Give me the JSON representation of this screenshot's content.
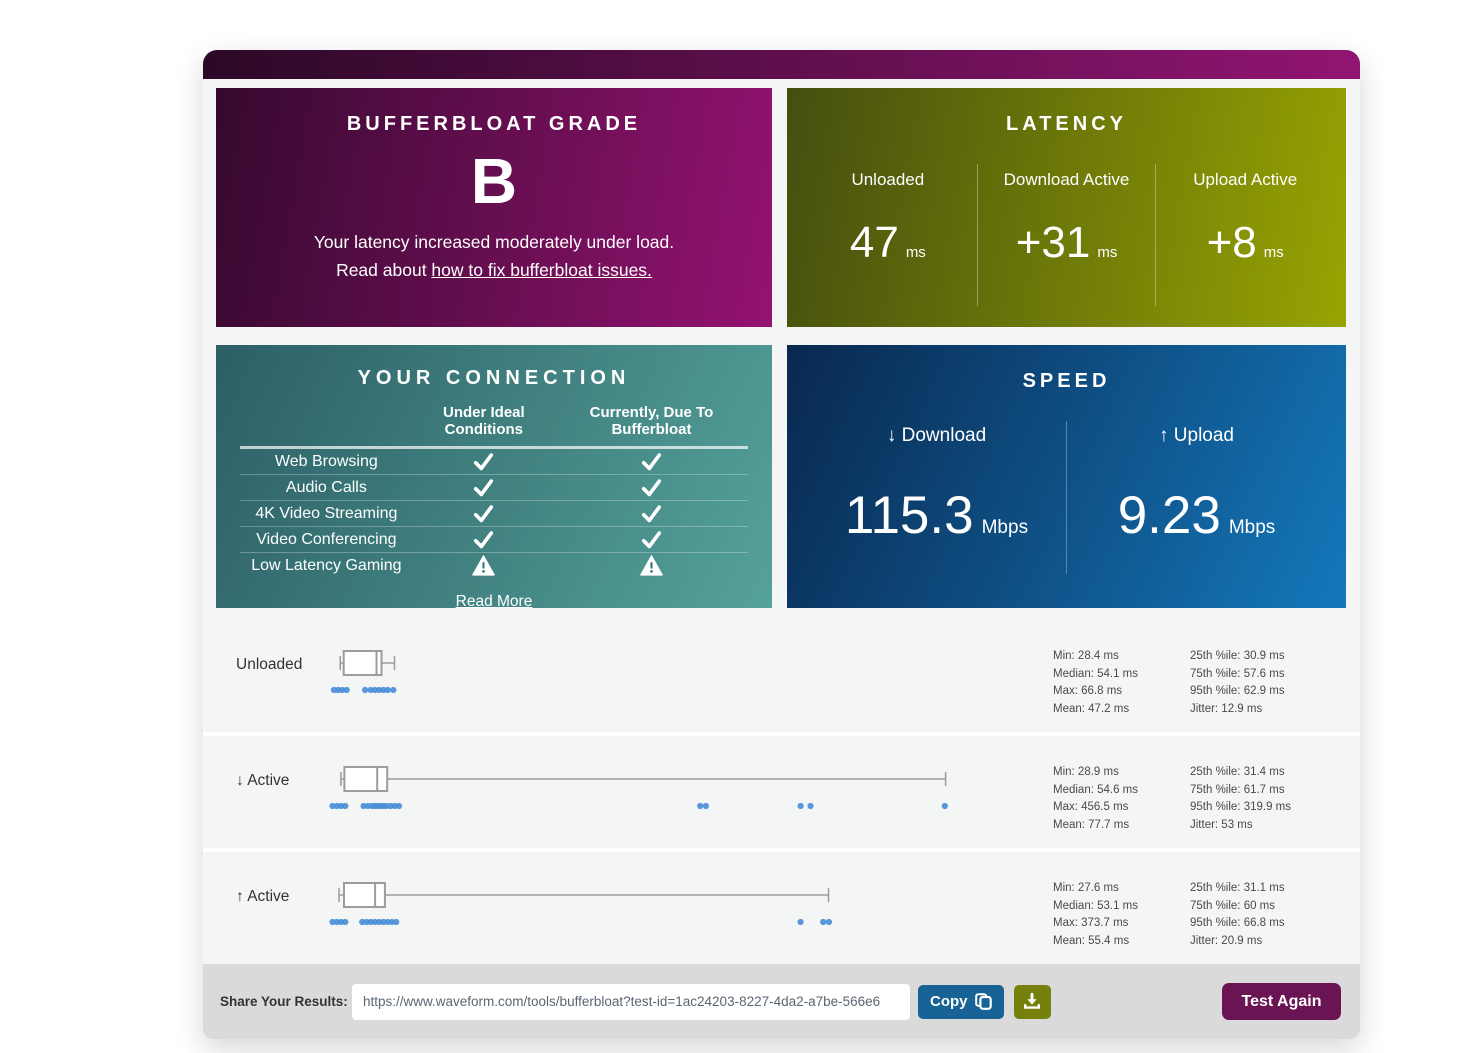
{
  "grade_card": {
    "title": "BUFFERBLOAT GRADE",
    "grade": "B",
    "description": "Your latency increased moderately under load.",
    "read_about_prefix": "Read about ",
    "link_text": "how to fix bufferbloat issues."
  },
  "latency_card": {
    "title": "LATENCY",
    "columns": [
      {
        "label": "Unloaded",
        "value": "47",
        "unit": "ms"
      },
      {
        "label": "Download Active",
        "value": "+31",
        "unit": "ms"
      },
      {
        "label": "Upload Active",
        "value": "+8",
        "unit": "ms"
      }
    ]
  },
  "connection_card": {
    "title": "YOUR CONNECTION",
    "col_headers": [
      "Under Ideal Conditions",
      "Currently, Due To Bufferbloat"
    ],
    "rows": [
      {
        "label": "Web Browsing",
        "ideal": "check",
        "current": "check"
      },
      {
        "label": "Audio Calls",
        "ideal": "check",
        "current": "check"
      },
      {
        "label": "4K Video Streaming",
        "ideal": "check",
        "current": "check"
      },
      {
        "label": "Video Conferencing",
        "ideal": "check",
        "current": "check"
      },
      {
        "label": "Low Latency Gaming",
        "ideal": "warn",
        "current": "warn"
      }
    ],
    "read_more": "Read More"
  },
  "speed_card": {
    "title": "SPEED",
    "columns": [
      {
        "arrow": "↓",
        "label": "Download",
        "value": "115.3",
        "unit": "Mbps"
      },
      {
        "arrow": "↑",
        "label": "Upload",
        "value": "9.23",
        "unit": "Mbps"
      }
    ]
  },
  "chart_data": {
    "type": "boxplot",
    "unit": "ms",
    "x_axis": {
      "min_ms": 0,
      "max_ms": 495,
      "shared_scale": true,
      "gridlines": false
    },
    "rows": [
      {
        "label": "Unloaded",
        "min": 28.4,
        "q1": 30.9,
        "median": 54.1,
        "q3": 57.6,
        "max": 66.8,
        "mean": 47.2,
        "p25": 30.9,
        "p75": 57.6,
        "p95": 62.9,
        "jitter": 12.9,
        "points_ms": [
          24,
          27,
          30,
          33,
          46,
          50,
          53,
          56,
          59,
          62,
          66
        ],
        "stats_left": [
          "Min: 28.4 ms",
          "Median: 54.1 ms",
          "Max: 66.8 ms",
          "Mean: 47.2 ms"
        ],
        "stats_right": [
          "25th %ile: 30.9 ms",
          "75th %ile: 57.6 ms",
          "95th %ile: 62.9 ms",
          "Jitter: 12.9 ms"
        ]
      },
      {
        "label": "↓ Active",
        "min": 28.9,
        "q1": 31.4,
        "median": 54.6,
        "q3": 61.7,
        "max": 456.5,
        "mean": 77.7,
        "p25": 31.4,
        "p75": 61.7,
        "p95": 319.9,
        "jitter": 53,
        "points_ms": [
          23,
          26,
          29,
          32,
          45,
          48,
          51,
          53,
          55,
          57,
          59,
          61,
          64,
          67,
          70,
          283,
          287,
          354,
          361,
          456
        ],
        "stats_left": [
          "Min: 28.9 ms",
          "Median: 54.6 ms",
          "Max: 456.5 ms",
          "Mean: 77.7 ms"
        ],
        "stats_right": [
          "25th %ile: 31.4 ms",
          "75th %ile: 61.7 ms",
          "95th %ile: 319.9 ms",
          "Jitter: 53 ms"
        ]
      },
      {
        "label": "↑ Active",
        "min": 27.6,
        "q1": 31.1,
        "median": 53.1,
        "q3": 60,
        "max": 373.7,
        "mean": 55.4,
        "p25": 31.1,
        "p75": 60,
        "p95": 66.8,
        "jitter": 20.9,
        "points_ms": [
          23,
          26,
          29,
          32,
          44,
          47,
          50,
          53,
          56,
          59,
          62,
          65,
          68,
          354,
          370,
          374
        ],
        "stats_left": [
          "Min: 27.6 ms",
          "Median: 53.1 ms",
          "Max: 373.7 ms",
          "Mean: 55.4 ms"
        ],
        "stats_right": [
          "25th %ile: 31.1 ms",
          "75th %ile: 60 ms",
          "95th %ile: 66.8 ms",
          "Jitter: 20.9 ms"
        ]
      }
    ]
  },
  "share": {
    "label": "Share Your Results:",
    "url": "https://www.waveform.com/tools/bufferbloat?test-id=1ac24203-8227-4da2-a7be-566e6",
    "copy_label": "Copy",
    "test_again_label": "Test Again"
  },
  "colors": {
    "accent_bar_gradient": [
      "#2c0827",
      "#911572"
    ],
    "grade_gradient": [
      "#36092f",
      "#941371"
    ],
    "latency_gradient": [
      "#454e0f",
      "#97a402"
    ],
    "connection_gradient": [
      "#2c5f66",
      "#55a29a"
    ],
    "speed_gradient": [
      "#09284f",
      "#1478bb"
    ],
    "copy_button": "#186396",
    "download_button": "#75810a",
    "test_again_button": "#6b1454",
    "dot_blue": "#4a8ed8",
    "boxplot_stroke": "#9c9c9c"
  }
}
